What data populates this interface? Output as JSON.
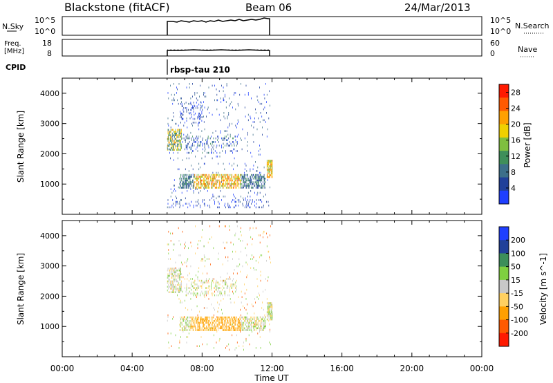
{
  "header": {
    "station": "Blackstone (fitACF)",
    "beam": "Beam 06",
    "date": "24/Mar/2013"
  },
  "panels": {
    "nsky": {
      "label": "N.Sky",
      "ticks_left": [
        "10^5",
        "10^0"
      ],
      "ticks_right": [
        "10^5",
        "10^0"
      ],
      "right_label": "N.Search"
    },
    "freq": {
      "label_line1": "Freq.",
      "label_line2": "[MHz]",
      "ticks_left": [
        "18",
        "8"
      ],
      "ticks_right": [
        "60",
        "0"
      ],
      "right_label": "Nave"
    },
    "cpid": {
      "label": "CPID",
      "value": "rbsp-tau 210"
    }
  },
  "chart_data": [
    {
      "type": "heatmap",
      "name": "power",
      "ylabel": "Slant Range [km]",
      "xlabel": "",
      "x_range_hours": [
        0,
        24
      ],
      "y_range_km": [
        0,
        4500
      ],
      "yticks": [
        1000,
        2000,
        3000,
        4000
      ],
      "data_time_range_ut": [
        "06:00",
        "12:00"
      ],
      "colorbar": {
        "label": "Power [dB]",
        "ticks": [
          4,
          8,
          12,
          16,
          20,
          24,
          28
        ],
        "range": [
          0,
          30
        ],
        "colors": [
          "#1f3fff",
          "#20409a",
          "#3c6f8a",
          "#3f8f5a",
          "#7fbf3f",
          "#f0d000",
          "#ffa000",
          "#ff5a00",
          "#ff1a00"
        ]
      },
      "features": [
        {
          "time": "06:00-06:45",
          "range_km": "2100-2800",
          "power_db": "12-22"
        },
        {
          "time": "06:45-11:40",
          "range_km": "900-1300",
          "power_db": "6-26"
        },
        {
          "time": "07:00-10:00",
          "range_km": "2000-2600",
          "power_db": "4-14"
        },
        {
          "time": "11:45-12:00",
          "range_km": "1200-1800",
          "power_db": "10-24"
        }
      ]
    },
    {
      "type": "heatmap",
      "name": "velocity",
      "ylabel": "Slant Range [km]",
      "xlabel": "Time UT",
      "x_range_hours": [
        0,
        24
      ],
      "y_range_km": [
        0,
        4500
      ],
      "yticks": [
        1000,
        2000,
        3000,
        4000
      ],
      "xticks": [
        "00:00",
        "04:00",
        "08:00",
        "12:00",
        "16:00",
        "20:00",
        "00:00"
      ],
      "data_time_range_ut": [
        "06:00",
        "12:00"
      ],
      "colorbar": {
        "label": "Velocity [m s^-1]",
        "ticks": [
          "200",
          "100",
          "50",
          "15",
          "-15",
          "-50",
          "-100",
          "-200"
        ],
        "colors": [
          "#1f3fff",
          "#20409a",
          "#3c8f5a",
          "#7fd040",
          "#c8c8c8",
          "#ffd060",
          "#ffa000",
          "#ff5a00",
          "#ff1a00"
        ]
      },
      "features": [
        {
          "time": "06:45-11:40",
          "range_km": "900-1300",
          "velocity_ms": "-50 to -15"
        },
        {
          "time": "06:00-10:00",
          "range_km": "2000-3000",
          "velocity_ms": "-15 to 15"
        }
      ]
    }
  ],
  "colors": {
    "axis": "#000000",
    "background": "#ffffff"
  }
}
